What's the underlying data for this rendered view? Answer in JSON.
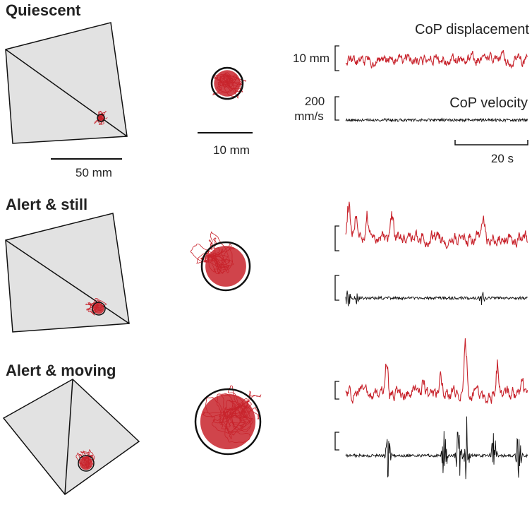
{
  "panels": [
    {
      "title": "Quiescent"
    },
    {
      "title": "Alert & still"
    },
    {
      "title": "Alert & moving"
    }
  ],
  "scale_bars": {
    "platform": "50 mm",
    "trajectory": "10 mm",
    "displacement": "10 mm",
    "velocity": [
      "200",
      "mm/s"
    ],
    "time": "20 s"
  },
  "trace_labels": {
    "displacement": "CoP displacement",
    "velocity": "CoP velocity"
  }
}
